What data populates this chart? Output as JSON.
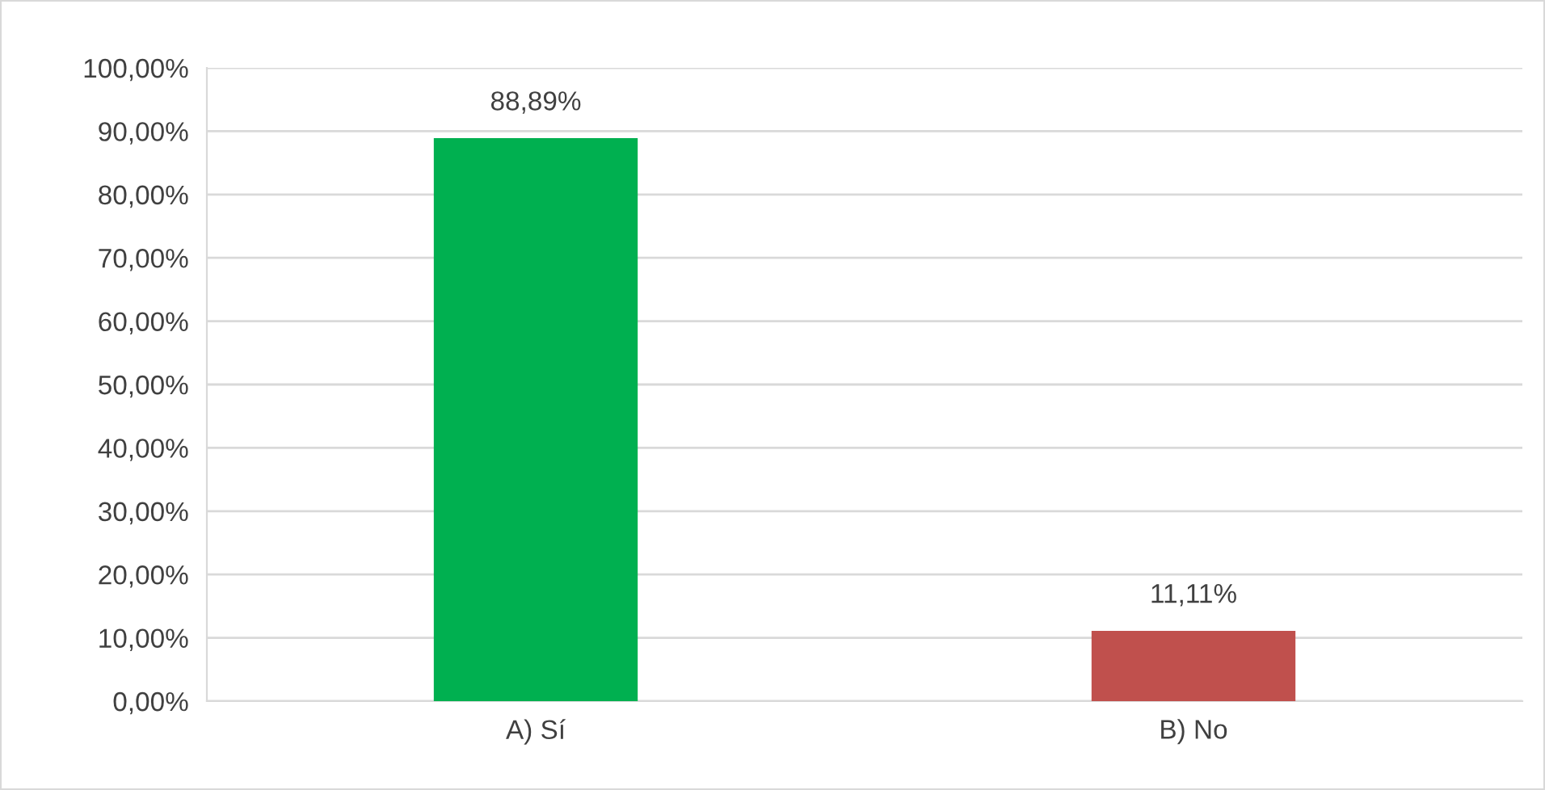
{
  "chart_data": {
    "type": "bar",
    "categories": [
      "A) Sí",
      "B) No"
    ],
    "series": [
      {
        "colors": [
          "#00b050",
          "#c0504d"
        ],
        "values": [
          88.89,
          11.11
        ],
        "value_labels": [
          "88,89%",
          "11,11%"
        ]
      }
    ],
    "ylim": [
      0,
      100
    ],
    "yticks": [
      {
        "value": 0,
        "label": "0,00%"
      },
      {
        "value": 10,
        "label": "10,00%"
      },
      {
        "value": 20,
        "label": "20,00%"
      },
      {
        "value": 30,
        "label": "30,00%"
      },
      {
        "value": 40,
        "label": "40,00%"
      },
      {
        "value": 50,
        "label": "50,00%"
      },
      {
        "value": 60,
        "label": "60,00%"
      },
      {
        "value": 70,
        "label": "70,00%"
      },
      {
        "value": 80,
        "label": "80,00%"
      },
      {
        "value": 90,
        "label": "90,00%"
      },
      {
        "value": 100,
        "label": "100,00%"
      }
    ],
    "grid": "y",
    "legend": false
  }
}
